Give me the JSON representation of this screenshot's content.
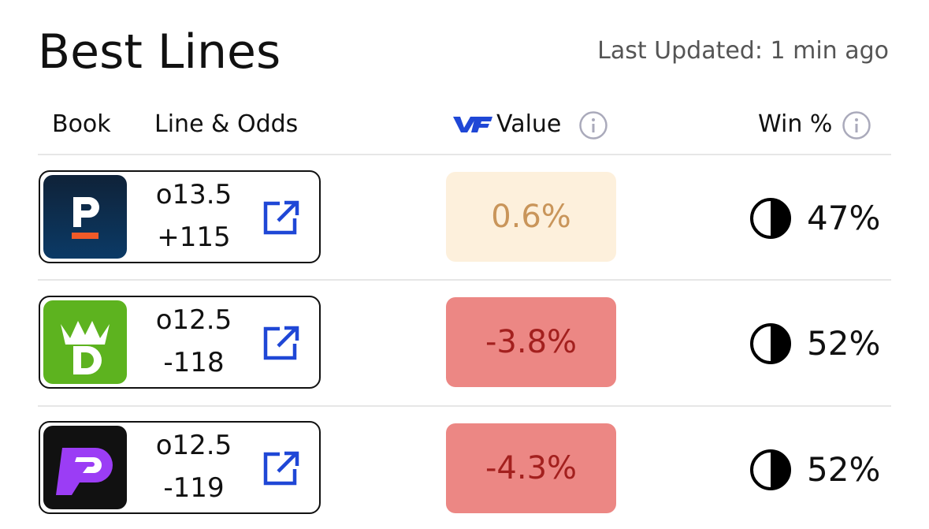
{
  "header": {
    "title": "Best Lines",
    "updated": "Last Updated: 1 min ago"
  },
  "columns": {
    "book": "Book",
    "line": "Line & Odds",
    "value": "Value",
    "win": "Win %"
  },
  "rows": [
    {
      "line": "o13.5",
      "odds": "+115",
      "value": "0.6%",
      "win": "47%"
    },
    {
      "line": "o12.5",
      "odds": "-118",
      "value": "-3.8%",
      "win": "52%"
    },
    {
      "line": "o12.5",
      "odds": "-119",
      "value": "-4.3%",
      "win": "52%"
    }
  ]
}
